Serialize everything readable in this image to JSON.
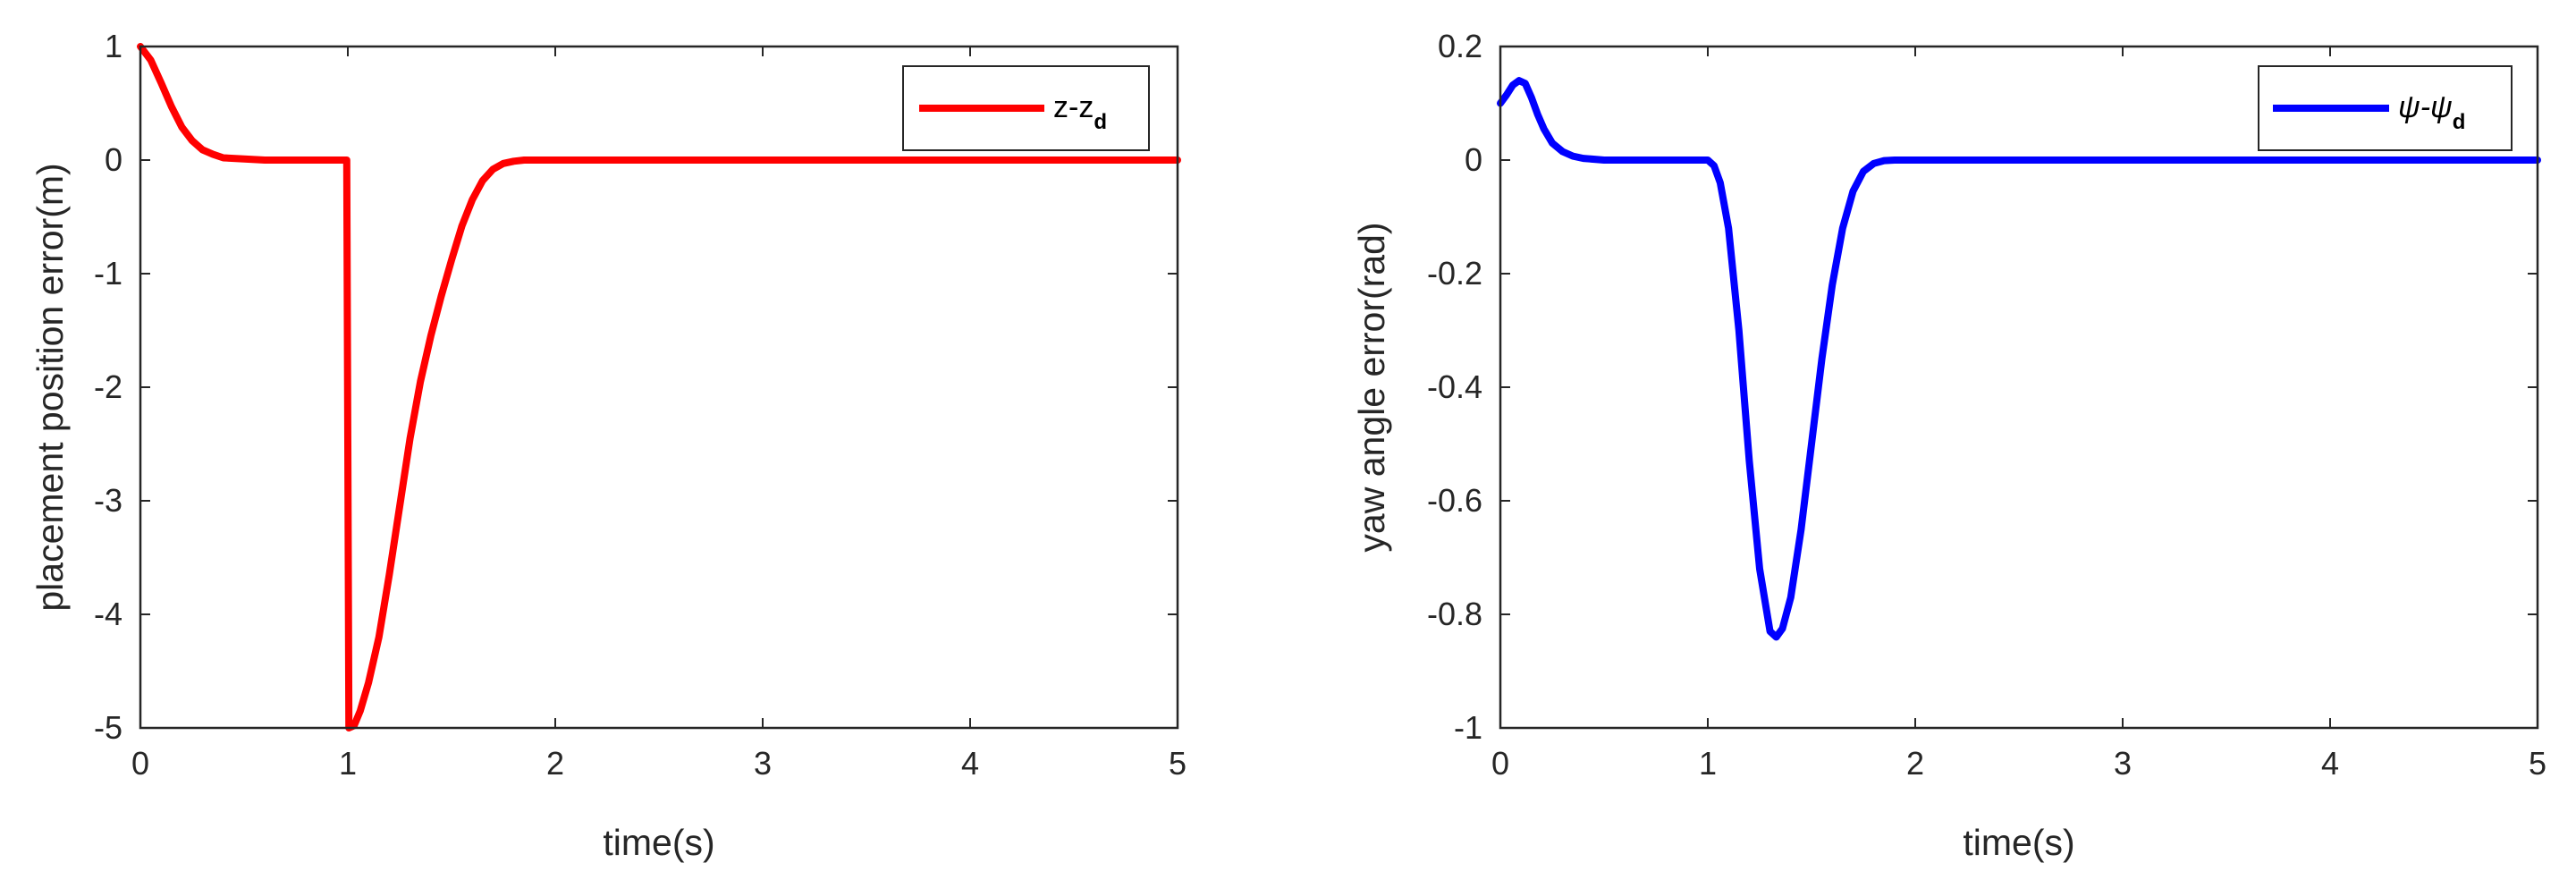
{
  "chart_data": [
    {
      "type": "line",
      "xlabel": "time(s)",
      "ylabel": "placement position error(m)",
      "xlim": [
        0,
        5
      ],
      "ylim": [
        -5,
        1
      ],
      "xticks": [
        "0",
        "1",
        "2",
        "3",
        "4",
        "5"
      ],
      "yticks": [
        "-5",
        "-4",
        "-3",
        "-2",
        "-1",
        "0",
        "1"
      ],
      "grid": false,
      "legend_position": "top-right",
      "series": [
        {
          "legend_main": "z-z",
          "legend_sub": "d",
          "color": "#ff0000",
          "x": [
            0,
            0.05,
            0.1,
            0.15,
            0.2,
            0.25,
            0.3,
            0.35,
            0.4,
            0.5,
            0.6,
            0.7,
            0.8,
            0.9,
            0.995,
            1.0,
            1.005,
            1.03,
            1.06,
            1.1,
            1.15,
            1.2,
            1.25,
            1.3,
            1.35,
            1.4,
            1.45,
            1.5,
            1.55,
            1.6,
            1.65,
            1.7,
            1.75,
            1.8,
            1.85,
            1.9,
            2.0,
            2.5,
            3.0,
            3.5,
            4.0,
            4.5,
            5.0
          ],
          "y": [
            1.0,
            0.88,
            0.68,
            0.47,
            0.29,
            0.17,
            0.09,
            0.05,
            0.02,
            0.01,
            0.0,
            0.0,
            0.0,
            0.0,
            0.0,
            -2.5,
            -5.0,
            -4.98,
            -4.85,
            -4.6,
            -4.2,
            -3.65,
            -3.05,
            -2.45,
            -1.95,
            -1.55,
            -1.2,
            -0.88,
            -0.58,
            -0.35,
            -0.18,
            -0.08,
            -0.03,
            -0.01,
            0.0,
            0.0,
            0.0,
            0.0,
            0.0,
            0.0,
            0.0,
            0.0,
            0.0
          ]
        }
      ]
    },
    {
      "type": "line",
      "xlabel": "time(s)",
      "ylabel": "yaw angle error(rad)",
      "xlim": [
        0,
        5
      ],
      "ylim": [
        -1,
        0.2
      ],
      "xticks": [
        "0",
        "1",
        "2",
        "3",
        "4",
        "5"
      ],
      "yticks": [
        "-1",
        "-0.8",
        "-0.6",
        "-0.4",
        "-0.2",
        "0",
        "0.2"
      ],
      "grid": false,
      "legend_position": "top-right",
      "series": [
        {
          "legend_main": "ψ-ψ",
          "legend_sub": "d",
          "color": "#0000ff",
          "x": [
            0,
            0.03,
            0.06,
            0.09,
            0.12,
            0.15,
            0.18,
            0.21,
            0.25,
            0.3,
            0.35,
            0.4,
            0.5,
            0.6,
            0.7,
            0.8,
            0.9,
            1.0,
            1.03,
            1.06,
            1.1,
            1.15,
            1.2,
            1.25,
            1.3,
            1.33,
            1.36,
            1.4,
            1.45,
            1.5,
            1.55,
            1.6,
            1.65,
            1.7,
            1.75,
            1.8,
            1.85,
            1.9,
            2.0,
            2.5,
            3.0,
            3.5,
            4.0,
            4.5,
            5.0
          ],
          "y": [
            0.1,
            0.115,
            0.132,
            0.14,
            0.135,
            0.11,
            0.08,
            0.055,
            0.03,
            0.015,
            0.007,
            0.003,
            0.0,
            0.0,
            0.0,
            0.0,
            0.0,
            0.0,
            -0.01,
            -0.04,
            -0.12,
            -0.3,
            -0.53,
            -0.72,
            -0.83,
            -0.84,
            -0.825,
            -0.77,
            -0.65,
            -0.5,
            -0.35,
            -0.22,
            -0.12,
            -0.055,
            -0.02,
            -0.006,
            -0.001,
            0.0,
            0.0,
            0.0,
            0.0,
            0.0,
            0.0,
            0.0,
            0.0
          ]
        }
      ]
    }
  ]
}
